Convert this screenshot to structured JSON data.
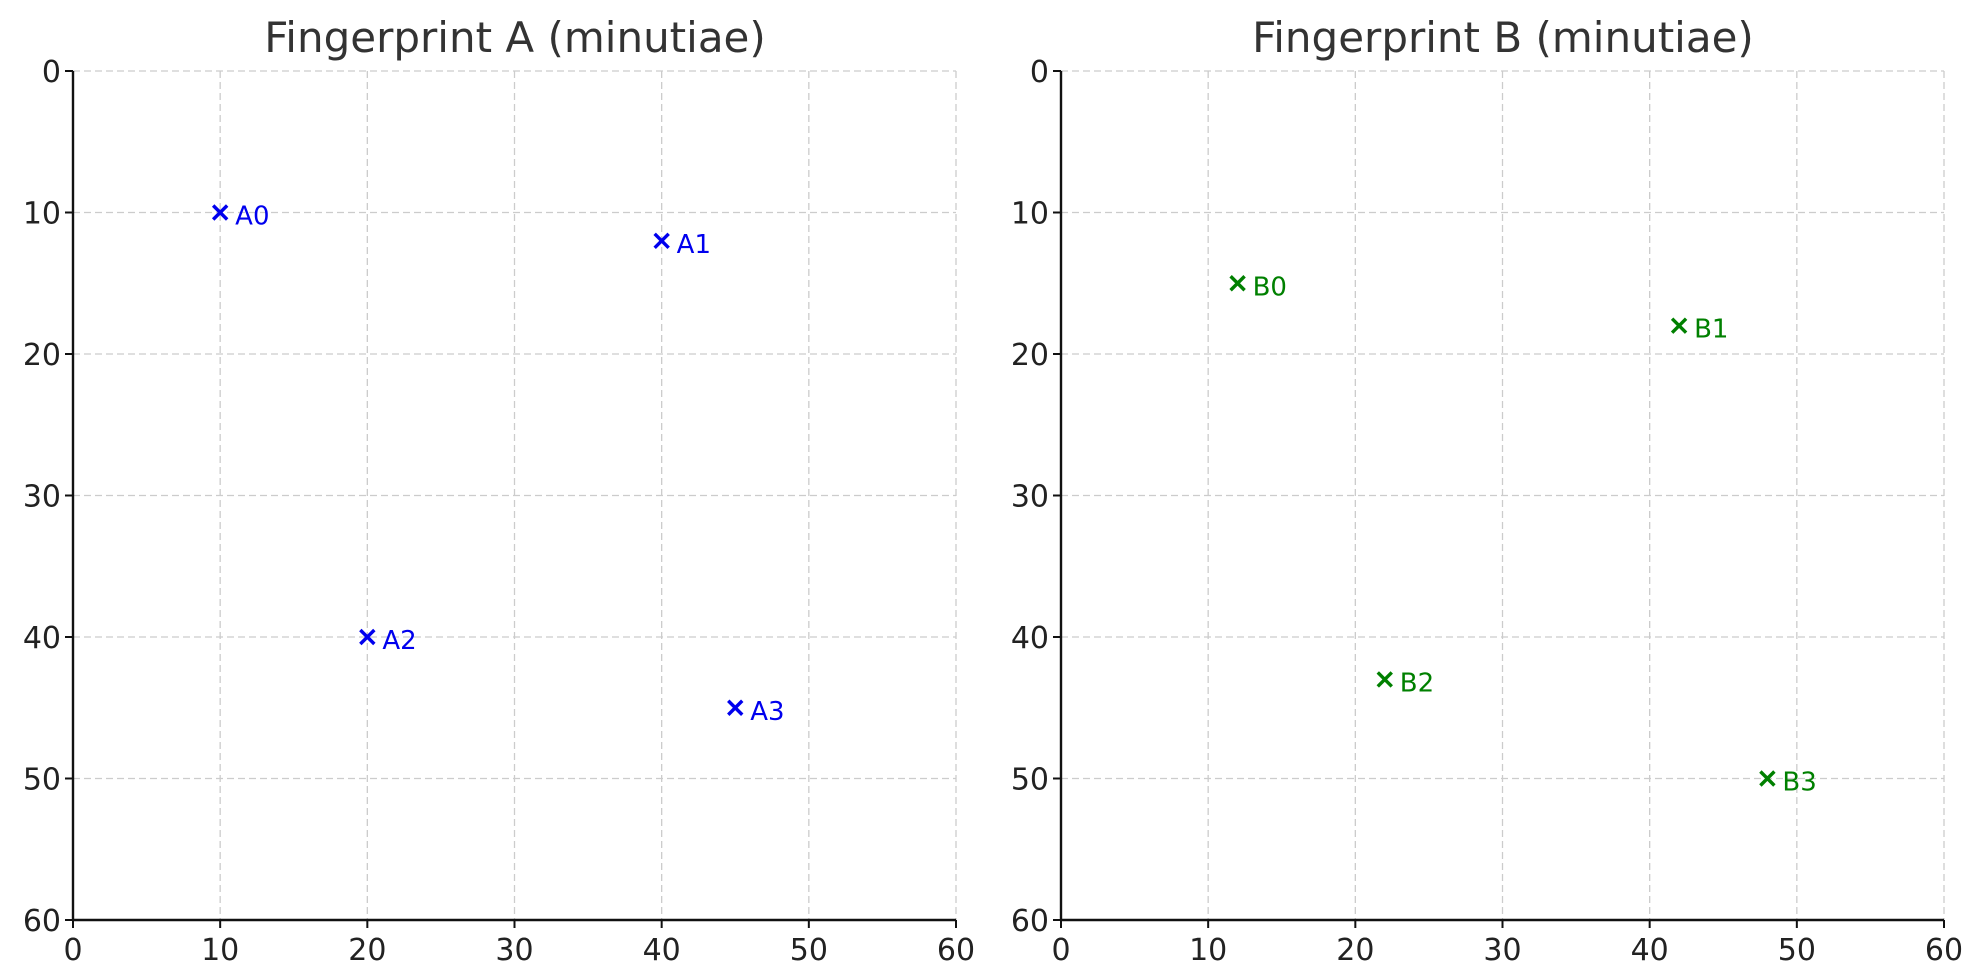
{
  "chart_data": [
    {
      "type": "scatter",
      "title": "Fingerprint A (minutiae)",
      "xlabel": "",
      "ylabel": "",
      "xlim": [
        0,
        60
      ],
      "ylim": [
        0,
        60
      ],
      "y_inverted": true,
      "xticks": [
        0,
        10,
        20,
        30,
        40,
        50,
        60
      ],
      "yticks": [
        0,
        10,
        20,
        30,
        40,
        50,
        60
      ],
      "grid": true,
      "marker": "x",
      "color": "#0000ee",
      "points": [
        {
          "label": "A0",
          "x": 10,
          "y": 10
        },
        {
          "label": "A1",
          "x": 40,
          "y": 12
        },
        {
          "label": "A2",
          "x": 20,
          "y": 40
        },
        {
          "label": "A3",
          "x": 45,
          "y": 45
        }
      ]
    },
    {
      "type": "scatter",
      "title": "Fingerprint B (minutiae)",
      "xlabel": "",
      "ylabel": "",
      "xlim": [
        0,
        60
      ],
      "ylim": [
        0,
        60
      ],
      "y_inverted": true,
      "xticks": [
        0,
        10,
        20,
        30,
        40,
        50,
        60
      ],
      "yticks": [
        0,
        10,
        20,
        30,
        40,
        50,
        60
      ],
      "grid": true,
      "marker": "x",
      "color": "#008000",
      "points": [
        {
          "label": "B0",
          "x": 12,
          "y": 15
        },
        {
          "label": "B1",
          "x": 42,
          "y": 18
        },
        {
          "label": "B2",
          "x": 22,
          "y": 43
        },
        {
          "label": "B3",
          "x": 48,
          "y": 50
        }
      ]
    }
  ]
}
